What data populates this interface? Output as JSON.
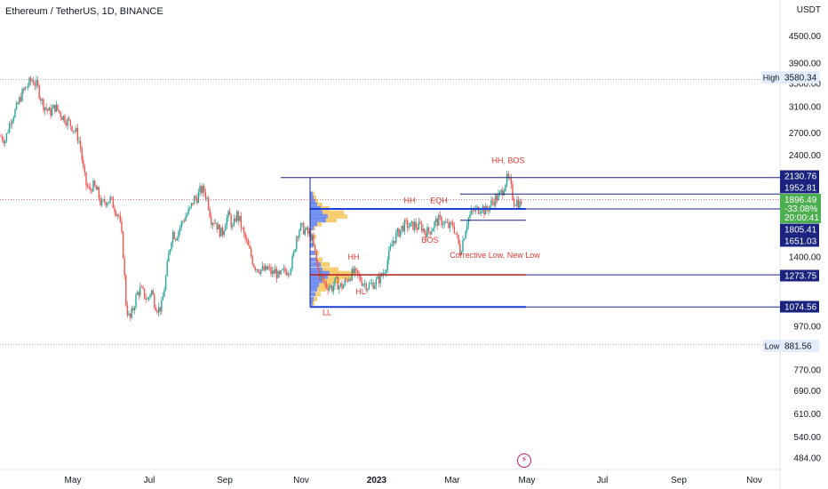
{
  "header": {
    "title": "Ethereum / TetherUS, 1D, BINANCE",
    "quote_currency": "USDT"
  },
  "colors": {
    "up": "#26a69a",
    "down": "#ef5350",
    "level_line": "#1a237e",
    "support_line": "#1d3fd9",
    "red_line": "#b71c1c",
    "annotation": "#e53935",
    "volume_blue": "#5f80f2",
    "volume_yellow": "#f7c55a",
    "price_tag_green": "#4caf50",
    "hi_lo_tag": "#e3ecfb"
  },
  "chart_data": {
    "type": "candlestick",
    "scale": "log",
    "y_axis_ticks": [
      4500,
      3900,
      3500,
      3100,
      2700,
      2400,
      1400,
      970,
      770,
      690,
      610,
      540,
      484
    ],
    "x_axis_ticks": [
      "May",
      "Jul",
      "Sep",
      "Nov",
      "2023",
      "Mar",
      "May",
      "Jul",
      "Sep",
      "Nov"
    ],
    "ylim": [
      455,
      5200
    ],
    "price_path": [
      [
        0,
        2660
      ],
      [
        6,
        2600
      ],
      [
        12,
        2900
      ],
      [
        18,
        3050
      ],
      [
        24,
        3300
      ],
      [
        30,
        3450
      ],
      [
        36,
        3580
      ],
      [
        42,
        3450
      ],
      [
        48,
        3150
      ],
      [
        56,
        3000
      ],
      [
        62,
        3100
      ],
      [
        70,
        2950
      ],
      [
        78,
        2850
      ],
      [
        86,
        2700
      ],
      [
        90,
        2550
      ],
      [
        94,
        2200
      ],
      [
        97,
        2050
      ],
      [
        101,
        1980
      ],
      [
        104,
        2050
      ],
      [
        110,
        1970
      ],
      [
        114,
        1840
      ],
      [
        118,
        1880
      ],
      [
        124,
        1900
      ],
      [
        130,
        1800
      ],
      [
        134,
        1740
      ],
      [
        138,
        1500
      ],
      [
        142,
        1080
      ],
      [
        146,
        1000
      ],
      [
        150,
        1070
      ],
      [
        154,
        1150
      ],
      [
        158,
        1180
      ],
      [
        162,
        1150
      ],
      [
        166,
        1110
      ],
      [
        170,
        1180
      ],
      [
        174,
        1100
      ],
      [
        178,
        1060
      ],
      [
        182,
        1080
      ],
      [
        186,
        1230
      ],
      [
        190,
        1420
      ],
      [
        194,
        1600
      ],
      [
        198,
        1560
      ],
      [
        202,
        1630
      ],
      [
        206,
        1700
      ],
      [
        210,
        1750
      ],
      [
        214,
        1800
      ],
      [
        218,
        1900
      ],
      [
        222,
        1920
      ],
      [
        226,
        2000
      ],
      [
        230,
        1980
      ],
      [
        234,
        1880
      ],
      [
        236,
        1780
      ],
      [
        238,
        1700
      ],
      [
        242,
        1700
      ],
      [
        246,
        1620
      ],
      [
        250,
        1580
      ],
      [
        254,
        1700
      ],
      [
        258,
        1750
      ],
      [
        262,
        1620
      ],
      [
        266,
        1760
      ],
      [
        270,
        1690
      ],
      [
        274,
        1580
      ],
      [
        278,
        1500
      ],
      [
        282,
        1420
      ],
      [
        286,
        1340
      ],
      [
        290,
        1320
      ],
      [
        294,
        1310
      ],
      [
        298,
        1300
      ],
      [
        302,
        1320
      ],
      [
        306,
        1280
      ],
      [
        310,
        1300
      ],
      [
        314,
        1250
      ],
      [
        318,
        1290
      ],
      [
        322,
        1300
      ],
      [
        326,
        1320
      ],
      [
        330,
        1390
      ],
      [
        334,
        1580
      ],
      [
        338,
        1640
      ],
      [
        342,
        1620
      ],
      [
        346,
        1590
      ],
      [
        350,
        1560
      ],
      [
        354,
        1450
      ],
      [
        358,
        1300
      ],
      [
        362,
        1250
      ],
      [
        366,
        1210
      ],
      [
        370,
        1200
      ],
      [
        374,
        1190
      ],
      [
        378,
        1230
      ],
      [
        382,
        1200
      ],
      [
        386,
        1200
      ],
      [
        390,
        1240
      ],
      [
        394,
        1270
      ],
      [
        398,
        1290
      ],
      [
        402,
        1270
      ],
      [
        406,
        1240
      ],
      [
        410,
        1220
      ],
      [
        414,
        1200
      ],
      [
        418,
        1210
      ],
      [
        424,
        1230
      ],
      [
        430,
        1270
      ],
      [
        434,
        1330
      ],
      [
        438,
        1420
      ],
      [
        442,
        1520
      ],
      [
        446,
        1570
      ],
      [
        450,
        1610
      ],
      [
        454,
        1650
      ],
      [
        458,
        1660
      ],
      [
        462,
        1640
      ],
      [
        466,
        1660
      ],
      [
        470,
        1640
      ],
      [
        474,
        1650
      ],
      [
        478,
        1600
      ],
      [
        482,
        1600
      ],
      [
        486,
        1630
      ],
      [
        490,
        1680
      ],
      [
        494,
        1700
      ],
      [
        498,
        1690
      ],
      [
        502,
        1660
      ],
      [
        506,
        1640
      ],
      [
        510,
        1660
      ],
      [
        514,
        1560
      ],
      [
        518,
        1440
      ],
      [
        522,
        1560
      ],
      [
        526,
        1700
      ],
      [
        530,
        1760
      ],
      [
        534,
        1790
      ],
      [
        538,
        1800
      ],
      [
        542,
        1830
      ],
      [
        546,
        1780
      ],
      [
        550,
        1820
      ],
      [
        554,
        1870
      ],
      [
        558,
        1910
      ],
      [
        562,
        1930
      ],
      [
        566,
        2000
      ],
      [
        570,
        2120
      ],
      [
        574,
        2080
      ],
      [
        578,
        1880
      ],
      [
        582,
        1880
      ],
      [
        585,
        1850
      ],
      [
        588,
        1900
      ]
    ],
    "price_levels": [
      {
        "value": 2130.76,
        "label": "2130.76",
        "style": "navy"
      },
      {
        "value": 1952.81,
        "label": "1952.81",
        "style": "navy"
      },
      {
        "value": 1896.49,
        "label": "1896.49",
        "style": "current"
      },
      {
        "value": 1805.41,
        "label": "1805.41",
        "style": "navy"
      },
      {
        "value": 1651.03,
        "label": "1651.03",
        "style": "navy"
      },
      {
        "value": 1273.75,
        "label": "1273.75",
        "style": "navy"
      },
      {
        "value": 1074.56,
        "label": "1074.56",
        "style": "navy"
      }
    ],
    "change_label": "-33.08%",
    "countdown_label": "20:00:41",
    "high": {
      "label": "High",
      "value": "3580.34"
    },
    "low": {
      "label": "Low",
      "value": "881.56"
    },
    "annotations": [
      {
        "text": "HH, BOS",
        "x": 572,
        "price": 2300
      },
      {
        "text": "HH",
        "x": 461,
        "price": 1860
      },
      {
        "text": "EQH",
        "x": 494,
        "price": 1860
      },
      {
        "text": "BOS",
        "x": 484,
        "price": 1510
      },
      {
        "text": "Corrective Low, New Low",
        "x": 557,
        "price": 1395
      },
      {
        "text": "HH",
        "x": 398,
        "price": 1380
      },
      {
        "text": "HL",
        "x": 406,
        "price": 1150
      },
      {
        "text": "LL",
        "x": 368,
        "price": 1030
      }
    ]
  },
  "logo_glyph": "⚡"
}
